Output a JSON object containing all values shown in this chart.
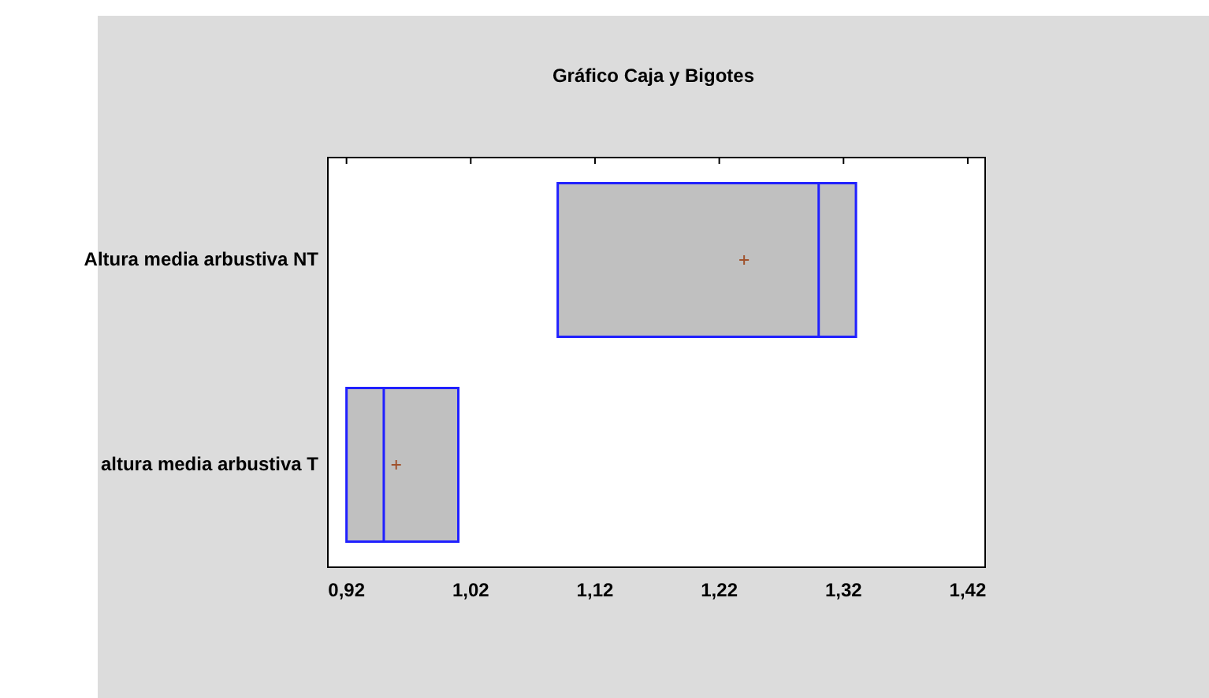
{
  "chart_data": {
    "type": "box",
    "title": "Gráfico Caja y Bigotes",
    "orientation": "horizontal",
    "categories": [
      "Altura media arbustiva NT",
      "altura media arbustiva T"
    ],
    "series": [
      {
        "color": "#c0c0c0",
        "boxes": [
          {
            "low": 1.09,
            "q1": 1.09,
            "median": 1.3,
            "q3": 1.33,
            "high": 1.33,
            "mean": 1.24
          },
          {
            "low": 0.92,
            "q1": 0.92,
            "median": 0.95,
            "q3": 1.01,
            "high": 1.01,
            "mean": 0.96
          }
        ]
      }
    ],
    "xlim": [
      0.905,
      1.434
    ],
    "xticks": [
      {
        "value": 0.92,
        "label": "0,92"
      },
      {
        "value": 1.02,
        "label": "1,02"
      },
      {
        "value": 1.12,
        "label": "1,12"
      },
      {
        "value": 1.22,
        "label": "1,22"
      },
      {
        "value": 1.32,
        "label": "1,32"
      },
      {
        "value": 1.42,
        "label": "1,42"
      }
    ],
    "grid": false,
    "legend": false
  }
}
